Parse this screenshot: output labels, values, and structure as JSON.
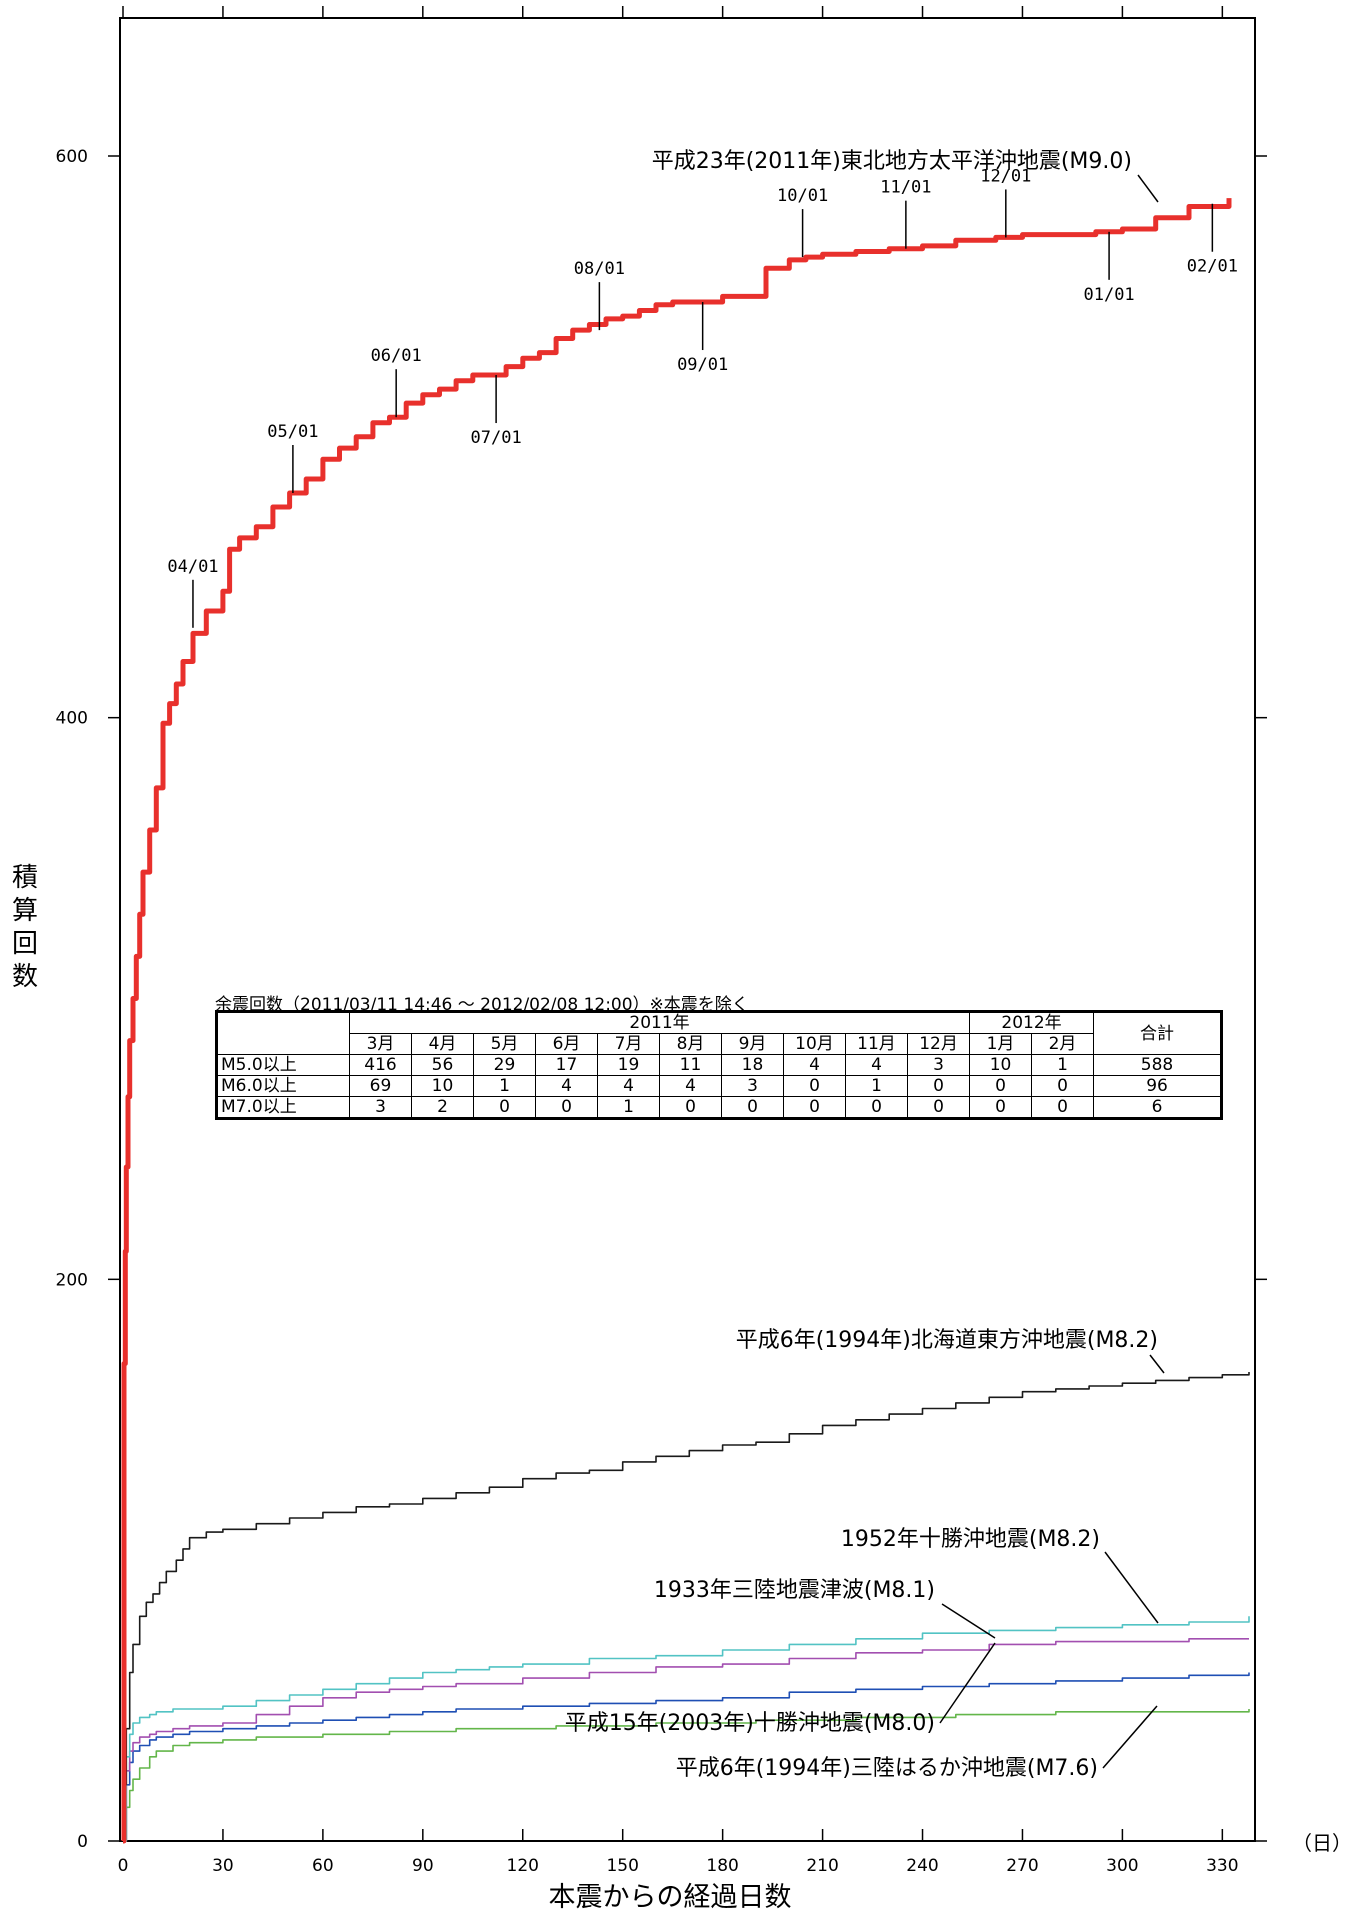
{
  "chart_data": {
    "type": "line",
    "xlabel": "本震からの経過日数",
    "xunit": "（日）",
    "ylabel": "積算回数",
    "xlim": [
      0,
      338
    ],
    "ylim": [
      0,
      670
    ],
    "xticks": [
      0,
      30,
      60,
      90,
      120,
      150,
      180,
      210,
      240,
      270,
      300,
      330
    ],
    "yticks": [
      0,
      200,
      400,
      600
    ],
    "grid": false,
    "series": [
      {
        "name": "平成23年(2011年)東北地方太平洋沖地震(M9.0)",
        "color": "#e8302c",
        "x": [
          0,
          0.3,
          0.7,
          1,
          1.5,
          2,
          3,
          4,
          5,
          6,
          8,
          10,
          12,
          14,
          16,
          18,
          21,
          25,
          30,
          32,
          35,
          40,
          45,
          50,
          55,
          60,
          65,
          70,
          75,
          80,
          85,
          90,
          95,
          100,
          105,
          111,
          115,
          120,
          125,
          130,
          135,
          140,
          145,
          150,
          155,
          160,
          165,
          172,
          180,
          190,
          193,
          200,
          205,
          210,
          220,
          230,
          240,
          250,
          262,
          270,
          280,
          292,
          300,
          310,
          320,
          332
        ],
        "y": [
          0,
          170,
          210,
          240,
          265,
          285,
          300,
          315,
          330,
          345,
          360,
          375,
          398,
          405,
          412,
          420,
          430,
          438,
          445,
          460,
          464,
          468,
          475,
          480,
          485,
          492,
          496,
          500,
          505,
          507,
          512,
          515,
          517,
          520,
          522,
          522,
          525,
          528,
          530,
          535,
          538,
          540,
          542,
          543,
          545,
          547,
          548,
          548,
          550,
          550,
          560,
          563,
          564,
          565,
          566,
          567,
          568,
          570,
          571,
          572,
          572,
          573,
          574,
          578,
          582,
          585
        ]
      },
      {
        "name": "平成6年(1994年)北海道東方沖地震(M8.2)",
        "color": "#1a1a1a",
        "x": [
          0,
          0.5,
          1,
          2,
          3,
          5,
          7,
          9,
          11,
          13,
          16,
          18,
          20,
          25,
          30,
          40,
          50,
          60,
          70,
          80,
          90,
          100,
          110,
          120,
          130,
          140,
          150,
          160,
          170,
          180,
          190,
          200,
          210,
          220,
          230,
          240,
          250,
          260,
          270,
          280,
          290,
          300,
          310,
          320,
          330,
          338
        ],
        "y": [
          0,
          20,
          40,
          60,
          70,
          80,
          85,
          88,
          92,
          96,
          100,
          104,
          108,
          110,
          111,
          113,
          115,
          117,
          119,
          120,
          122,
          124,
          126,
          129,
          131,
          132,
          135,
          137,
          139,
          141,
          142,
          145,
          148,
          150,
          152,
          154,
          156,
          158,
          160,
          161,
          162,
          163,
          164,
          165,
          166,
          167
        ]
      },
      {
        "name": "1952年十勝沖地震(M8.2)",
        "color": "#52c3c4",
        "x": [
          0,
          1,
          2,
          3,
          5,
          8,
          10,
          15,
          20,
          30,
          40,
          50,
          60,
          70,
          80,
          90,
          100,
          110,
          120,
          140,
          160,
          180,
          200,
          220,
          240,
          260,
          280,
          300,
          320,
          338
        ],
        "y": [
          0,
          30,
          38,
          42,
          44,
          45,
          46,
          47,
          47,
          48,
          50,
          52,
          54,
          56,
          58,
          60,
          61,
          62,
          63,
          65,
          66,
          68,
          70,
          72,
          74,
          75,
          76,
          77,
          78,
          80
        ]
      },
      {
        "name": "1933年三陸地震津波(M8.1)",
        "color": "#a24fb0",
        "x": [
          0,
          1,
          2,
          3,
          5,
          8,
          10,
          15,
          20,
          30,
          40,
          50,
          60,
          70,
          80,
          90,
          100,
          120,
          140,
          160,
          180,
          200,
          220,
          240,
          260,
          280,
          300,
          320,
          338
        ],
        "y": [
          0,
          25,
          32,
          35,
          37,
          38,
          39,
          40,
          41,
          42,
          45,
          48,
          51,
          53,
          54,
          55,
          56,
          58,
          60,
          62,
          63,
          65,
          67,
          68,
          70,
          71,
          71,
          72,
          72
        ]
      },
      {
        "name": "平成15年(2003年)十勝沖地震(M8.0)",
        "color": "#1f4fb4",
        "x": [
          0,
          1,
          2,
          3,
          5,
          8,
          10,
          15,
          20,
          30,
          40,
          50,
          60,
          70,
          80,
          90,
          100,
          120,
          140,
          160,
          180,
          200,
          220,
          240,
          260,
          280,
          300,
          320,
          338
        ],
        "y": [
          0,
          20,
          28,
          32,
          34,
          36,
          37,
          38,
          39,
          40,
          41,
          42,
          43,
          44,
          45,
          46,
          47,
          48,
          49,
          50,
          51,
          53,
          54,
          55,
          56,
          57,
          58,
          59,
          60
        ]
      },
      {
        "name": "平成6年(1994年)三陸はるか沖地震(M7.6)",
        "color": "#63b64a",
        "x": [
          0,
          1,
          2,
          3,
          5,
          8,
          10,
          15,
          20,
          30,
          40,
          60,
          80,
          100,
          130,
          160,
          190,
          220,
          250,
          280,
          310,
          338
        ],
        "y": [
          0,
          12,
          18,
          22,
          26,
          30,
          32,
          34,
          35,
          36,
          37,
          38,
          39,
          40,
          41,
          42,
          43,
          44,
          45,
          46,
          46,
          47
        ]
      }
    ],
    "month_markers": [
      {
        "label": "04/01",
        "x": 21,
        "y": 432
      },
      {
        "label": "05/01",
        "x": 51,
        "y": 480
      },
      {
        "label": "06/01",
        "x": 82,
        "y": 507
      },
      {
        "label": "07/01",
        "x": 112,
        "y": 522
      },
      {
        "label": "08/01",
        "x": 143,
        "y": 538
      },
      {
        "label": "09/01",
        "x": 174,
        "y": 548
      },
      {
        "label": "10/01",
        "x": 204,
        "y": 564
      },
      {
        "label": "11/01",
        "x": 235,
        "y": 567
      },
      {
        "label": "12/01",
        "x": 265,
        "y": 571
      },
      {
        "label": "01/01",
        "x": 296,
        "y": 573
      },
      {
        "label": "02/01",
        "x": 327,
        "y": 583
      }
    ],
    "annotations": [
      {
        "text": "平成23年(2011年)東北地方太平洋沖地震(M9.0)"
      },
      {
        "text": "平成6年(1994年)北海道東方沖地震(M8.2)"
      },
      {
        "text": "1952年十勝沖地震(M8.2)"
      },
      {
        "text": "1933年三陸地震津波(M8.1)"
      },
      {
        "text": "平成15年(2003年)十勝沖地震(M8.0)"
      },
      {
        "text": "平成6年(1994年)三陸はるか沖地震(M7.6)"
      }
    ]
  },
  "table": {
    "title": "余震回数（2011/03/11 14:46 ～ 2012/02/08 12:00）※本震を除く",
    "year_2011": "2011年",
    "year_2012": "2012年",
    "total_label": "合計",
    "months": [
      "3月",
      "4月",
      "5月",
      "6月",
      "7月",
      "8月",
      "9月",
      "10月",
      "11月",
      "12月",
      "1月",
      "2月"
    ],
    "rows": [
      {
        "label": "M5.0以上",
        "values": [
          "416",
          "56",
          "29",
          "17",
          "19",
          "11",
          "18",
          "4",
          "4",
          "3",
          "10",
          "1"
        ],
        "total": "588"
      },
      {
        "label": "M6.0以上",
        "values": [
          "69",
          "10",
          "1",
          "4",
          "4",
          "4",
          "3",
          "0",
          "1",
          "0",
          "0",
          "0"
        ],
        "total": "96"
      },
      {
        "label": "M7.0以上",
        "values": [
          "3",
          "2",
          "0",
          "0",
          "1",
          "0",
          "0",
          "0",
          "0",
          "0",
          "0",
          "0"
        ],
        "total": "6"
      }
    ]
  }
}
